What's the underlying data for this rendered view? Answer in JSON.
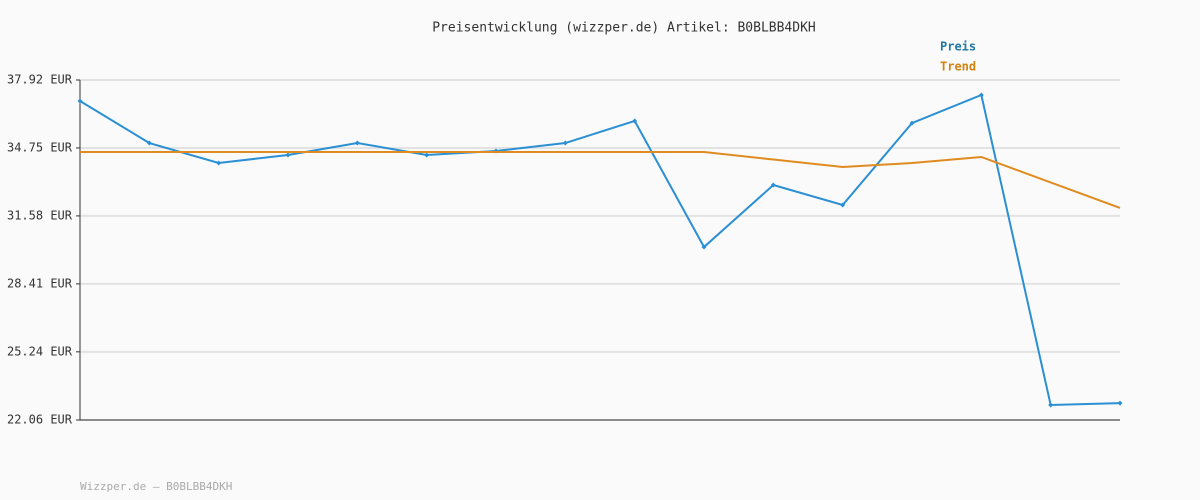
{
  "chart_data": {
    "type": "line",
    "title": "Preisentwicklung (wizzper.de) Artikel: B0BLBB4DKH",
    "footer": "Wizzper.de – B0BLBB4DKH",
    "categories": [
      null,
      null,
      null,
      null,
      null,
      null,
      null,
      null,
      null,
      null,
      null,
      null,
      null,
      null,
      null,
      null
    ],
    "series": [
      {
        "name": "Preis",
        "color": "#2b8fd3",
        "label_color": "#1f77a8",
        "markers": true,
        "values": [
          36.94,
          34.98,
          34.05,
          34.42,
          34.98,
          34.42,
          34.61,
          34.98,
          36.01,
          30.13,
          33.02,
          32.09,
          35.91,
          37.22,
          22.76,
          22.85
        ]
      },
      {
        "name": "Trend",
        "color": "#e08b20",
        "label_color": "#d4820f",
        "markers": false,
        "values": [
          34.56,
          34.56,
          34.56,
          34.56,
          34.56,
          34.56,
          34.56,
          34.56,
          34.56,
          34.56,
          34.21,
          33.86,
          34.05,
          34.33,
          33.14,
          31.95
        ]
      }
    ],
    "ylim": [
      22.06,
      37.92
    ],
    "yticks": [
      {
        "value": 22.06,
        "label": "22.06 EUR"
      },
      {
        "value": 25.24,
        "label": "25.24 EUR"
      },
      {
        "value": 28.41,
        "label": "28.41 EUR"
      },
      {
        "value": 31.58,
        "label": "31.58 EUR"
      },
      {
        "value": 34.75,
        "label": "34.75 EUR"
      },
      {
        "value": 37.92,
        "label": "37.92 EUR"
      }
    ],
    "grid": true
  }
}
